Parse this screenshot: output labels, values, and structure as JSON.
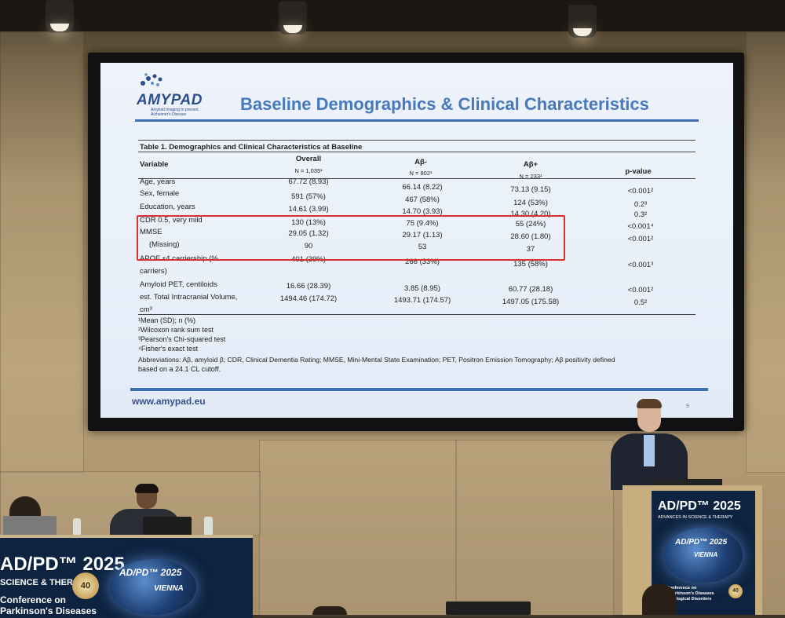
{
  "slide": {
    "logo": "AMYPAD",
    "logo_subtitle": "Amyloid Imaging to prevent Alzheimer's Disease",
    "title": "Baseline Demographics & Clinical Characteristics",
    "table_caption": "Table 1. Demographics and Clinical Characteristics at Baseline",
    "columns": [
      {
        "name": "Variable",
        "n": ""
      },
      {
        "name": "Overall",
        "n": "N = 1,035¹"
      },
      {
        "name": "Aβ-",
        "n": "N = 802¹"
      },
      {
        "name": "Aβ+",
        "n": "N = 233¹"
      },
      {
        "name": "p-value",
        "n": ""
      }
    ],
    "rows": [
      {
        "variable": "Age, years",
        "overall": "67.72 (8.93)",
        "abneg": "66.14 (8.22)",
        "abpos": "73.13 (9.15)",
        "p": "<0.001²"
      },
      {
        "variable": "Sex, female",
        "overall": "591 (57%)",
        "abneg": "467 (58%)",
        "abpos": "124 (53%)",
        "p": "0.2³"
      },
      {
        "variable": "Education, years",
        "overall": "14.61 (3.99)",
        "abneg": "14.70 (3.93)",
        "abpos": "14.30 (4.20)",
        "p": "0.3²"
      },
      {
        "variable": "CDR 0.5, very mild",
        "overall": "130 (13%)",
        "abneg": "75 (9.4%)",
        "abpos": "55 (24%)",
        "p": "<0.001⁴"
      },
      {
        "variable": "MMSE",
        "overall": "29.05 (1.32)",
        "abneg": "29.17 (1.13)",
        "abpos": "28.60 (1.80)",
        "p": "<0.001²"
      },
      {
        "variable": "(Missing)",
        "overall": "90",
        "abneg": "53",
        "abpos": "37",
        "p": ""
      },
      {
        "variable": "APOE ε4 carriership (%",
        "overall": "401 (39%)",
        "abneg": "266 (33%)",
        "abpos": "135 (58%)",
        "p": "<0.001³"
      },
      {
        "variable": "carriers)",
        "overall": "",
        "abneg": "",
        "abpos": "",
        "p": ""
      },
      {
        "variable": "Amyloid PET, centiloids",
        "overall": "16.66 (28.39)",
        "abneg": "3.85 (8.95)",
        "abpos": "60.77 (28.18)",
        "p": "<0.001²"
      },
      {
        "variable": "est. Total Intracranial Volume,",
        "overall": "1494.46 (174.72)",
        "abneg": "1493.71 (174.57)",
        "abpos": "1497.05 (175.58)",
        "p": "0.5²"
      },
      {
        "variable": "cm³",
        "overall": "",
        "abneg": "",
        "abpos": "",
        "p": ""
      }
    ],
    "footnotes": [
      "¹Mean (SD); n (%)",
      "²Wilcoxon rank sum test",
      "³Pearson's Chi-squared test",
      "⁴Fisher's exact test",
      "Abbreviations: Aβ, amyloid β; CDR, Clinical Dementia Rating; MMSE, Mini-Mental State Examination; PET, Positron Emission Tomography; Aβ positivity defined",
      "based on a 24.1 CL cutoff."
    ],
    "url": "www.amypad.eu",
    "page_number": "9"
  },
  "stage": {
    "desk_left_brand": "AD/PD™ 2025",
    "desk_left_tag": "SCIENCE & THERAPY",
    "desk_left_line1": "Conference on",
    "desk_left_line2": "Parkinson's Diseases",
    "globe_text": "AD/PD™ 2025",
    "globe_sub": "VIENNA",
    "medal_text": "40",
    "podium_brand": "AD/PD™ 2025",
    "podium_tag": "ADVANCES IN SCIENCE & THERAPY",
    "podium_line1": "onal Conference on",
    "podium_line2": "'s and Parkinson's Diseases",
    "podium_line3": "ted Neurological Disorders"
  }
}
